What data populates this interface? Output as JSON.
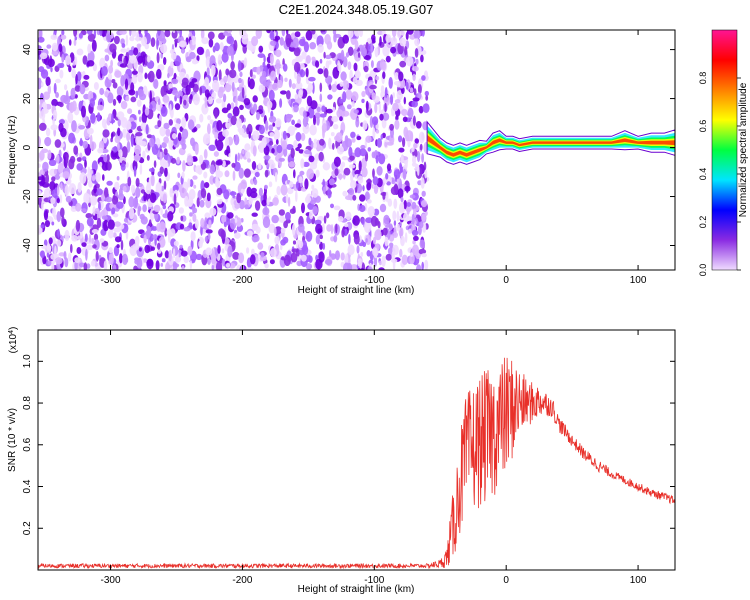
{
  "title": "C2E1.2024.348.05.19.G07",
  "chart_data": [
    {
      "type": "heatmap",
      "xlabel": "Height of straight line (km)",
      "ylabel": "Frequency (Hz)",
      "xlim": [
        -355,
        128
      ],
      "ylim": [
        -50,
        48
      ],
      "x_ticks": [
        -300,
        -200,
        -100,
        0,
        100
      ],
      "y_ticks": [
        -40,
        -20,
        0,
        20,
        40
      ],
      "noise_region_x": [
        -355,
        -60
      ],
      "ridge": {
        "x": [
          -60,
          -55,
          -50,
          -45,
          -40,
          -35,
          -30,
          -25,
          -20,
          -15,
          -10,
          -5,
          0,
          5,
          10,
          20,
          30,
          40,
          50,
          60,
          70,
          80,
          90,
          100,
          110,
          120,
          128
        ],
        "freq": [
          4,
          2,
          0,
          -2,
          -3,
          -2,
          -3,
          -2,
          -1,
          0,
          2,
          3,
          2,
          2,
          1,
          2,
          2,
          2,
          2,
          2,
          2,
          2,
          3,
          2,
          2,
          2,
          2
        ],
        "halfwidth": [
          5,
          4,
          3,
          3,
          3,
          3,
          3,
          3,
          3,
          2,
          3,
          3,
          2,
          2,
          2,
          2,
          2,
          2,
          2,
          2,
          2,
          2,
          3,
          2,
          3,
          3,
          4
        ]
      },
      "colorbar": {
        "label": "Normalized spectral amplitude",
        "range": [
          0,
          1
        ],
        "ticks": [
          "0.0",
          "0.2",
          "0.4",
          "0.6",
          "0.8"
        ],
        "colors": [
          "#f0dcff",
          "#8a2be2",
          "#0000ff",
          "#00e5ff",
          "#00ff40",
          "#ffff00",
          "#ff8000",
          "#ff0000",
          "#ff1493"
        ]
      },
      "noise_colors": [
        "#f0dcff",
        "#dcb4ff",
        "#c08cff",
        "#a05aff",
        "#8a2be2",
        "#7000e0"
      ]
    },
    {
      "type": "line",
      "xlabel": "Height of straight line (km)",
      "ylabel": "SNR (10 * v/v)",
      "y_scale_label": "(x10",
      "y_scale_exp": "4",
      "xlim": [
        -355,
        128
      ],
      "ylim": [
        0.0,
        1.15
      ],
      "x_ticks": [
        -300,
        -200,
        -100,
        0,
        100
      ],
      "y_ticks": [
        0.2,
        0.4,
        0.6,
        0.8,
        1.0
      ],
      "y_tick_labels": [
        "0.2",
        "0.4",
        "0.6",
        "0.8",
        "1.0"
      ],
      "color": "#e8302a",
      "envelope": {
        "x": [
          -355,
          -60,
          -50,
          -45,
          -40,
          -35,
          -30,
          -20,
          -10,
          -5,
          0,
          5,
          10,
          15,
          20,
          25,
          30,
          35,
          40,
          50,
          60,
          70,
          80,
          90,
          100,
          110,
          120,
          128
        ],
        "mid": [
          0.02,
          0.02,
          0.03,
          0.06,
          0.22,
          0.42,
          0.55,
          0.62,
          0.66,
          0.7,
          0.74,
          0.78,
          0.8,
          0.8,
          0.8,
          0.81,
          0.8,
          0.78,
          0.7,
          0.62,
          0.55,
          0.5,
          0.46,
          0.43,
          0.4,
          0.37,
          0.35,
          0.33
        ],
        "amp": [
          0.01,
          0.01,
          0.02,
          0.05,
          0.18,
          0.25,
          0.3,
          0.32,
          0.32,
          0.3,
          0.3,
          0.25,
          0.18,
          0.12,
          0.1,
          0.08,
          0.06,
          0.05,
          0.04,
          0.03,
          0.03,
          0.03,
          0.02,
          0.02,
          0.02,
          0.02,
          0.02,
          0.02
        ]
      }
    }
  ]
}
